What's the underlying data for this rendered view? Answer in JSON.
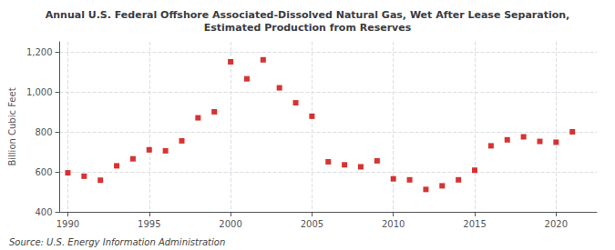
{
  "chart_data": {
    "type": "scatter",
    "title": "Annual U.S. Federal Offshore Associated-Dissolved Natural Gas, Wet After Lease Separation,\nEstimated Production from Reserves",
    "ylabel": "Billion Cubic Feet",
    "annotations": [
      "Source: U.S. Energy Information Administration"
    ],
    "x": [
      1990,
      1991,
      1992,
      1993,
      1994,
      1995,
      1996,
      1997,
      1998,
      1999,
      2000,
      2001,
      2002,
      2003,
      2004,
      2005,
      2006,
      2007,
      2008,
      2009,
      2010,
      2011,
      2012,
      2013,
      2014,
      2015,
      2016,
      2017,
      2018,
      2019,
      2020,
      2021
    ],
    "values": [
      595,
      578,
      558,
      630,
      665,
      710,
      705,
      755,
      870,
      900,
      1150,
      1065,
      1160,
      1020,
      945,
      878,
      650,
      635,
      625,
      655,
      565,
      560,
      512,
      530,
      560,
      608,
      730,
      760,
      775,
      752,
      748,
      800
    ],
    "color": "#cc0000",
    "marker": "square",
    "xlim": [
      1989.5,
      2022.5
    ],
    "xticks": [
      1990,
      1995,
      2000,
      2005,
      2010,
      2015,
      2020
    ],
    "ylim": [
      400,
      1250
    ],
    "yticks": [
      400,
      600,
      800,
      {
        "value": 1000,
        "label": "1,000"
      },
      {
        "value": 1200,
        "label": "1,200"
      }
    ],
    "grid": true
  }
}
